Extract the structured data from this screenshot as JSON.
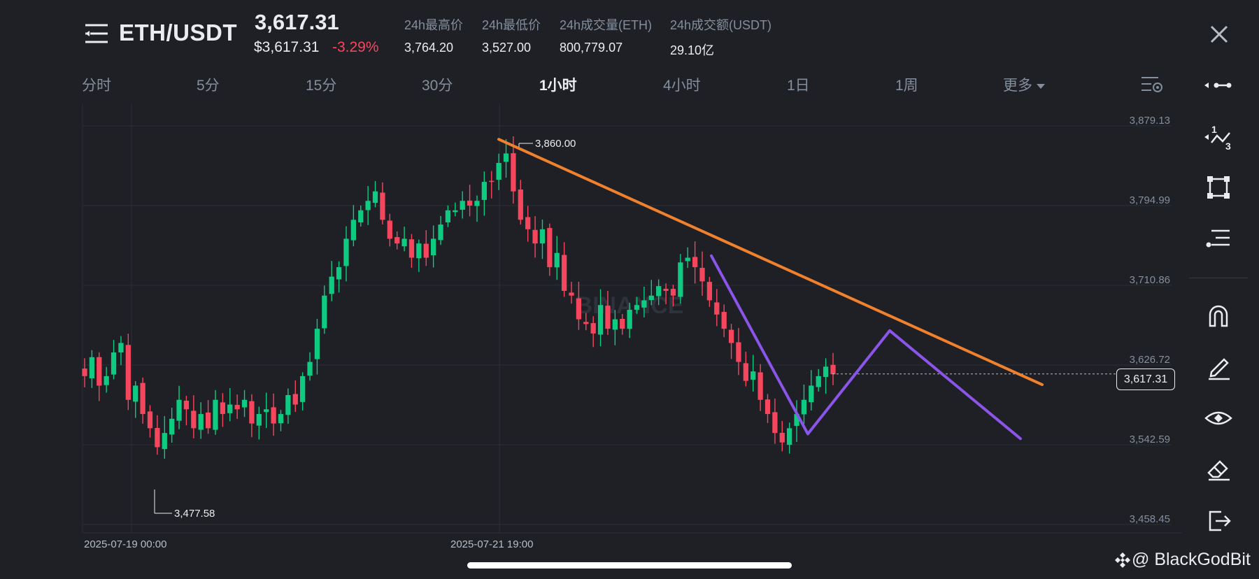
{
  "header": {
    "pair": "ETH/USDT",
    "last_price": "3,617.31",
    "sub_price": "$3,617.31",
    "change": "-3.29%",
    "stats": [
      {
        "label": "24h最高价",
        "value": "3,764.20"
      },
      {
        "label": "24h最低价",
        "value": "3,527.00"
      },
      {
        "label": "24h成交量(ETH)",
        "value": "800,779.07"
      },
      {
        "label": "24h成交额(USDT)",
        "value": "29.10亿"
      }
    ]
  },
  "intervals": [
    "分时",
    "5分",
    "15分",
    "30分",
    "1小时",
    "4小时",
    "1日",
    "1周",
    "更多"
  ],
  "active_interval": "1小时",
  "colors": {
    "up": "#0ecb81",
    "down": "#f6465d",
    "trendline": "#f0812d",
    "pattern": "#8a55e8",
    "accent": "#f6465d"
  },
  "chart_data": {
    "type": "candlestick",
    "y_ticks": [
      "3,879.13",
      "3,794.99",
      "3,710.86",
      "3,626.72",
      "3,542.59",
      "3,458.45"
    ],
    "ylim": [
      3458.45,
      3879.13
    ],
    "x_ticks": [
      "2025-07-19 00:00",
      "2025-07-21 19:00"
    ],
    "high_label": "3,860.00",
    "low_label": "3,477.58",
    "current_price": "3,617.31",
    "close_path": [
      3615,
      3635,
      3605,
      3615,
      3640,
      3650,
      3590,
      3605,
      3575,
      3560,
      3540,
      3555,
      3570,
      3590,
      3580,
      3560,
      3575,
      3560,
      3590,
      3575,
      3585,
      3580,
      3590,
      3565,
      3575,
      3580,
      3565,
      3575,
      3595,
      3585,
      3615,
      3630,
      3665,
      3700,
      3720,
      3730,
      3760,
      3780,
      3790,
      3800,
      3810,
      3780,
      3760,
      3755,
      3760,
      3740,
      3755,
      3740,
      3760,
      3775,
      3790,
      3790,
      3800,
      3795,
      3800,
      3820,
      3820,
      3840,
      3850,
      3810,
      3780,
      3770,
      3755,
      3770,
      3730,
      3745,
      3705,
      3700,
      3675,
      3670,
      3660,
      3690,
      3665,
      3675,
      3665,
      3685,
      3690,
      3695,
      3700,
      3710,
      3705,
      3700,
      3735,
      3740,
      3730,
      3715,
      3695,
      3680,
      3665,
      3650,
      3630,
      3610,
      3620,
      3590,
      3575,
      3555,
      3545,
      3560,
      3575,
      3590,
      3605,
      3615,
      3625,
      3617
    ],
    "trendline": {
      "from": [
        0,
        3865
      ],
      "to": [
        1.27,
        3606
      ]
    },
    "pattern_points": [
      [
        0.72,
        3742
      ],
      [
        0.88,
        3554
      ],
      [
        0.99,
        3663
      ],
      [
        1.16,
        3549
      ]
    ]
  },
  "tools": [
    "more-options-icon",
    "fib-ratio-icon",
    "rectangle-icon",
    "indicator-settings-icon",
    "magnet-icon",
    "pencil-icon",
    "eye-icon",
    "eraser-icon",
    "exit-icon"
  ],
  "watermark": "@ BlackGodBit",
  "center_watermark": "BINANCE"
}
